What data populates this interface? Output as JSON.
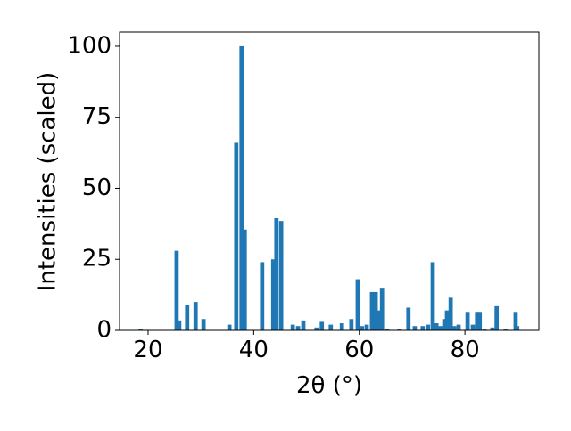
{
  "chart_data": {
    "type": "bar",
    "xlabel": "2θ (°)",
    "ylabel": "Intensities (scaled)",
    "color": "#1f77b4",
    "x": [
      18.6,
      25.4,
      25.9,
      27.4,
      29.0,
      30.5,
      35.4,
      36.7,
      37.7,
      38.3,
      41.6,
      43.7,
      44.3,
      45.2,
      47.4,
      48.4,
      49.4,
      51.9,
      52.9,
      54.6,
      56.7,
      58.5,
      59.7,
      60.5,
      61.4,
      62.4,
      63.1,
      63.6,
      64.3,
      65.3,
      67.6,
      69.3,
      70.5,
      72.0,
      73.0,
      73.9,
      74.6,
      75.4,
      76.1,
      76.6,
      77.3,
      78.0,
      78.8,
      80.5,
      81.5,
      82.3,
      82.8,
      83.7,
      85.2,
      86.0,
      87.7,
      89.6,
      89.9
    ],
    "values": [
      0.5,
      28,
      3.5,
      9,
      10,
      4,
      2,
      66,
      100,
      35.5,
      24,
      25,
      39.5,
      38.5,
      2,
      1.5,
      3.5,
      1,
      3,
      2,
      2.5,
      4,
      18,
      1.5,
      2,
      13.5,
      13.5,
      7,
      15,
      0.5,
      0.5,
      8,
      1.5,
      1.5,
      2,
      24,
      2.5,
      1.5,
      4,
      7,
      11.5,
      1.5,
      2,
      6.5,
      2,
      6.5,
      6.5,
      0.5,
      1,
      8.5,
      0.5,
      6.5,
      1.5
    ],
    "xlim": [
      14.6,
      94.0
    ],
    "ylim": [
      0,
      105
    ],
    "xticks": [
      20,
      40,
      60,
      80
    ],
    "yticks": [
      0,
      25,
      50,
      75,
      100
    ]
  }
}
